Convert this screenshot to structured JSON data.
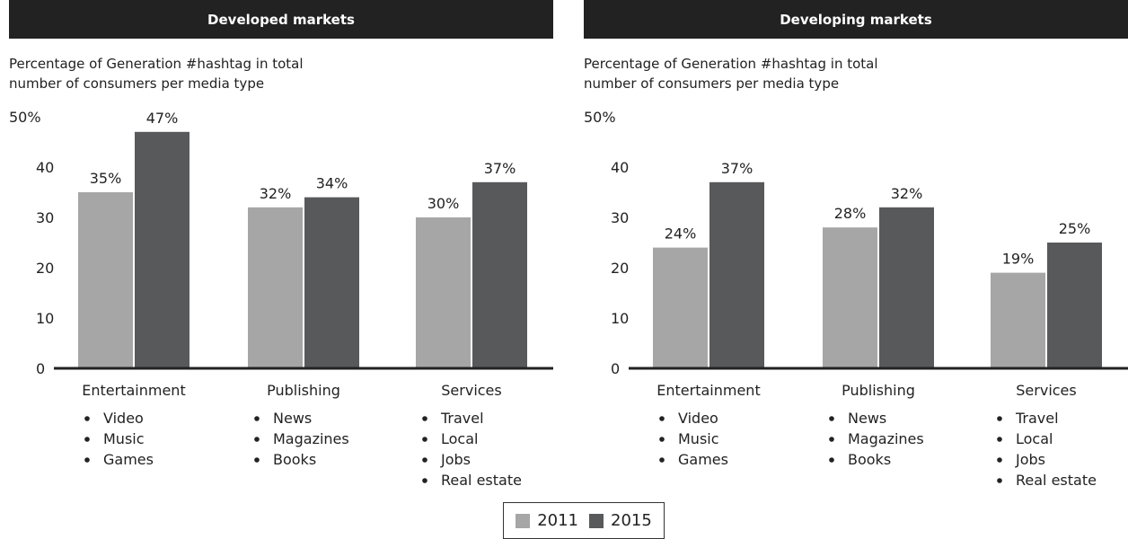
{
  "legend": [
    {
      "label": "2011",
      "color": "#a6a6a6"
    },
    {
      "label": "2015",
      "color": "#58595b"
    }
  ],
  "chart_data": [
    {
      "type": "bar",
      "title": "Developed markets",
      "subtitle_lines": [
        "Percentage of Generation #hashtag in total",
        "number of consumers per media type"
      ],
      "y_ticks": [
        "0",
        "10",
        "20",
        "30",
        "40",
        "50%"
      ],
      "ylim": [
        0,
        50
      ],
      "categories": [
        "Entertainment",
        "Publishing",
        "Services"
      ],
      "category_items": [
        [
          "Video",
          "Music",
          "Games"
        ],
        [
          "News",
          "Magazines",
          "Books"
        ],
        [
          "Travel",
          "Local",
          "Jobs",
          "Real estate"
        ]
      ],
      "series": [
        {
          "name": "2011",
          "values": [
            35,
            32,
            30
          ],
          "labels": [
            "35%",
            "32%",
            "30%"
          ],
          "color": "#a6a6a6"
        },
        {
          "name": "2015",
          "values": [
            47,
            34,
            37
          ],
          "labels": [
            "47%",
            "34%",
            "37%"
          ],
          "color": "#58595b"
        }
      ],
      "grid": false
    },
    {
      "type": "bar",
      "title": "Developing markets",
      "subtitle_lines": [
        "Percentage of Generation #hashtag in total",
        "number of consumers per media type"
      ],
      "y_ticks": [
        "0",
        "10",
        "20",
        "30",
        "40",
        "50%"
      ],
      "ylim": [
        0,
        50
      ],
      "categories": [
        "Entertainment",
        "Publishing",
        "Services"
      ],
      "category_items": [
        [
          "Video",
          "Music",
          "Games"
        ],
        [
          "News",
          "Magazines",
          "Books"
        ],
        [
          "Travel",
          "Local",
          "Jobs",
          "Real estate"
        ]
      ],
      "series": [
        {
          "name": "2011",
          "values": [
            24,
            28,
            19
          ],
          "labels": [
            "24%",
            "28%",
            "19%"
          ],
          "color": "#a6a6a6"
        },
        {
          "name": "2015",
          "values": [
            37,
            32,
            25
          ],
          "labels": [
            "37%",
            "32%",
            "25%"
          ],
          "color": "#58595b"
        }
      ],
      "grid": false
    }
  ]
}
